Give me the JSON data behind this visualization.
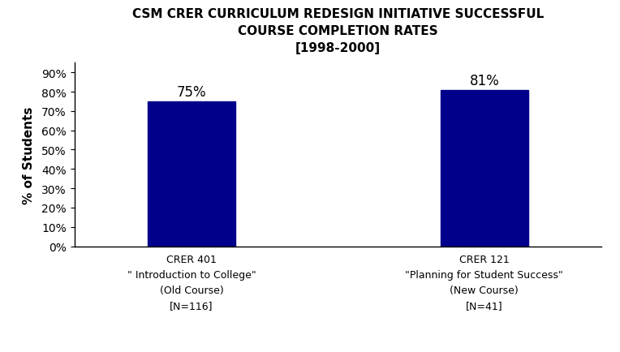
{
  "title_line1": "CSM CRER CURRICULUM REDESIGN INITIATIVE SUCCESSFUL",
  "title_line2": "COURSE COMPLETION RATES",
  "title_line3": "[1998-2000]",
  "categories": [
    "CRER 401\n\" Introduction to College\"\n(Old Course)\n[N=116]",
    "CRER 121\n\"Planning for Student Success\"\n(New Course)\n[N=41]"
  ],
  "values": [
    75,
    81
  ],
  "bar_color": "#00008B",
  "ylabel": "% of Students",
  "yticks": [
    0,
    10,
    20,
    30,
    40,
    50,
    60,
    70,
    80,
    90
  ],
  "ytick_labels": [
    "0%",
    "10%",
    "20%",
    "30%",
    "40%",
    "50%",
    "60%",
    "70%",
    "80%",
    "90%"
  ],
  "ylim": [
    0,
    95
  ],
  "bar_labels": [
    "75%",
    "81%"
  ],
  "background_color": "#ffffff",
  "title_fontsize": 11,
  "ylabel_fontsize": 11,
  "tick_label_fontsize": 10,
  "bar_label_fontsize": 12,
  "xticklabel_fontsize": 9,
  "bar_width": 0.45,
  "x_positions": [
    1.0,
    2.5
  ],
  "xlim": [
    0.4,
    3.1
  ]
}
